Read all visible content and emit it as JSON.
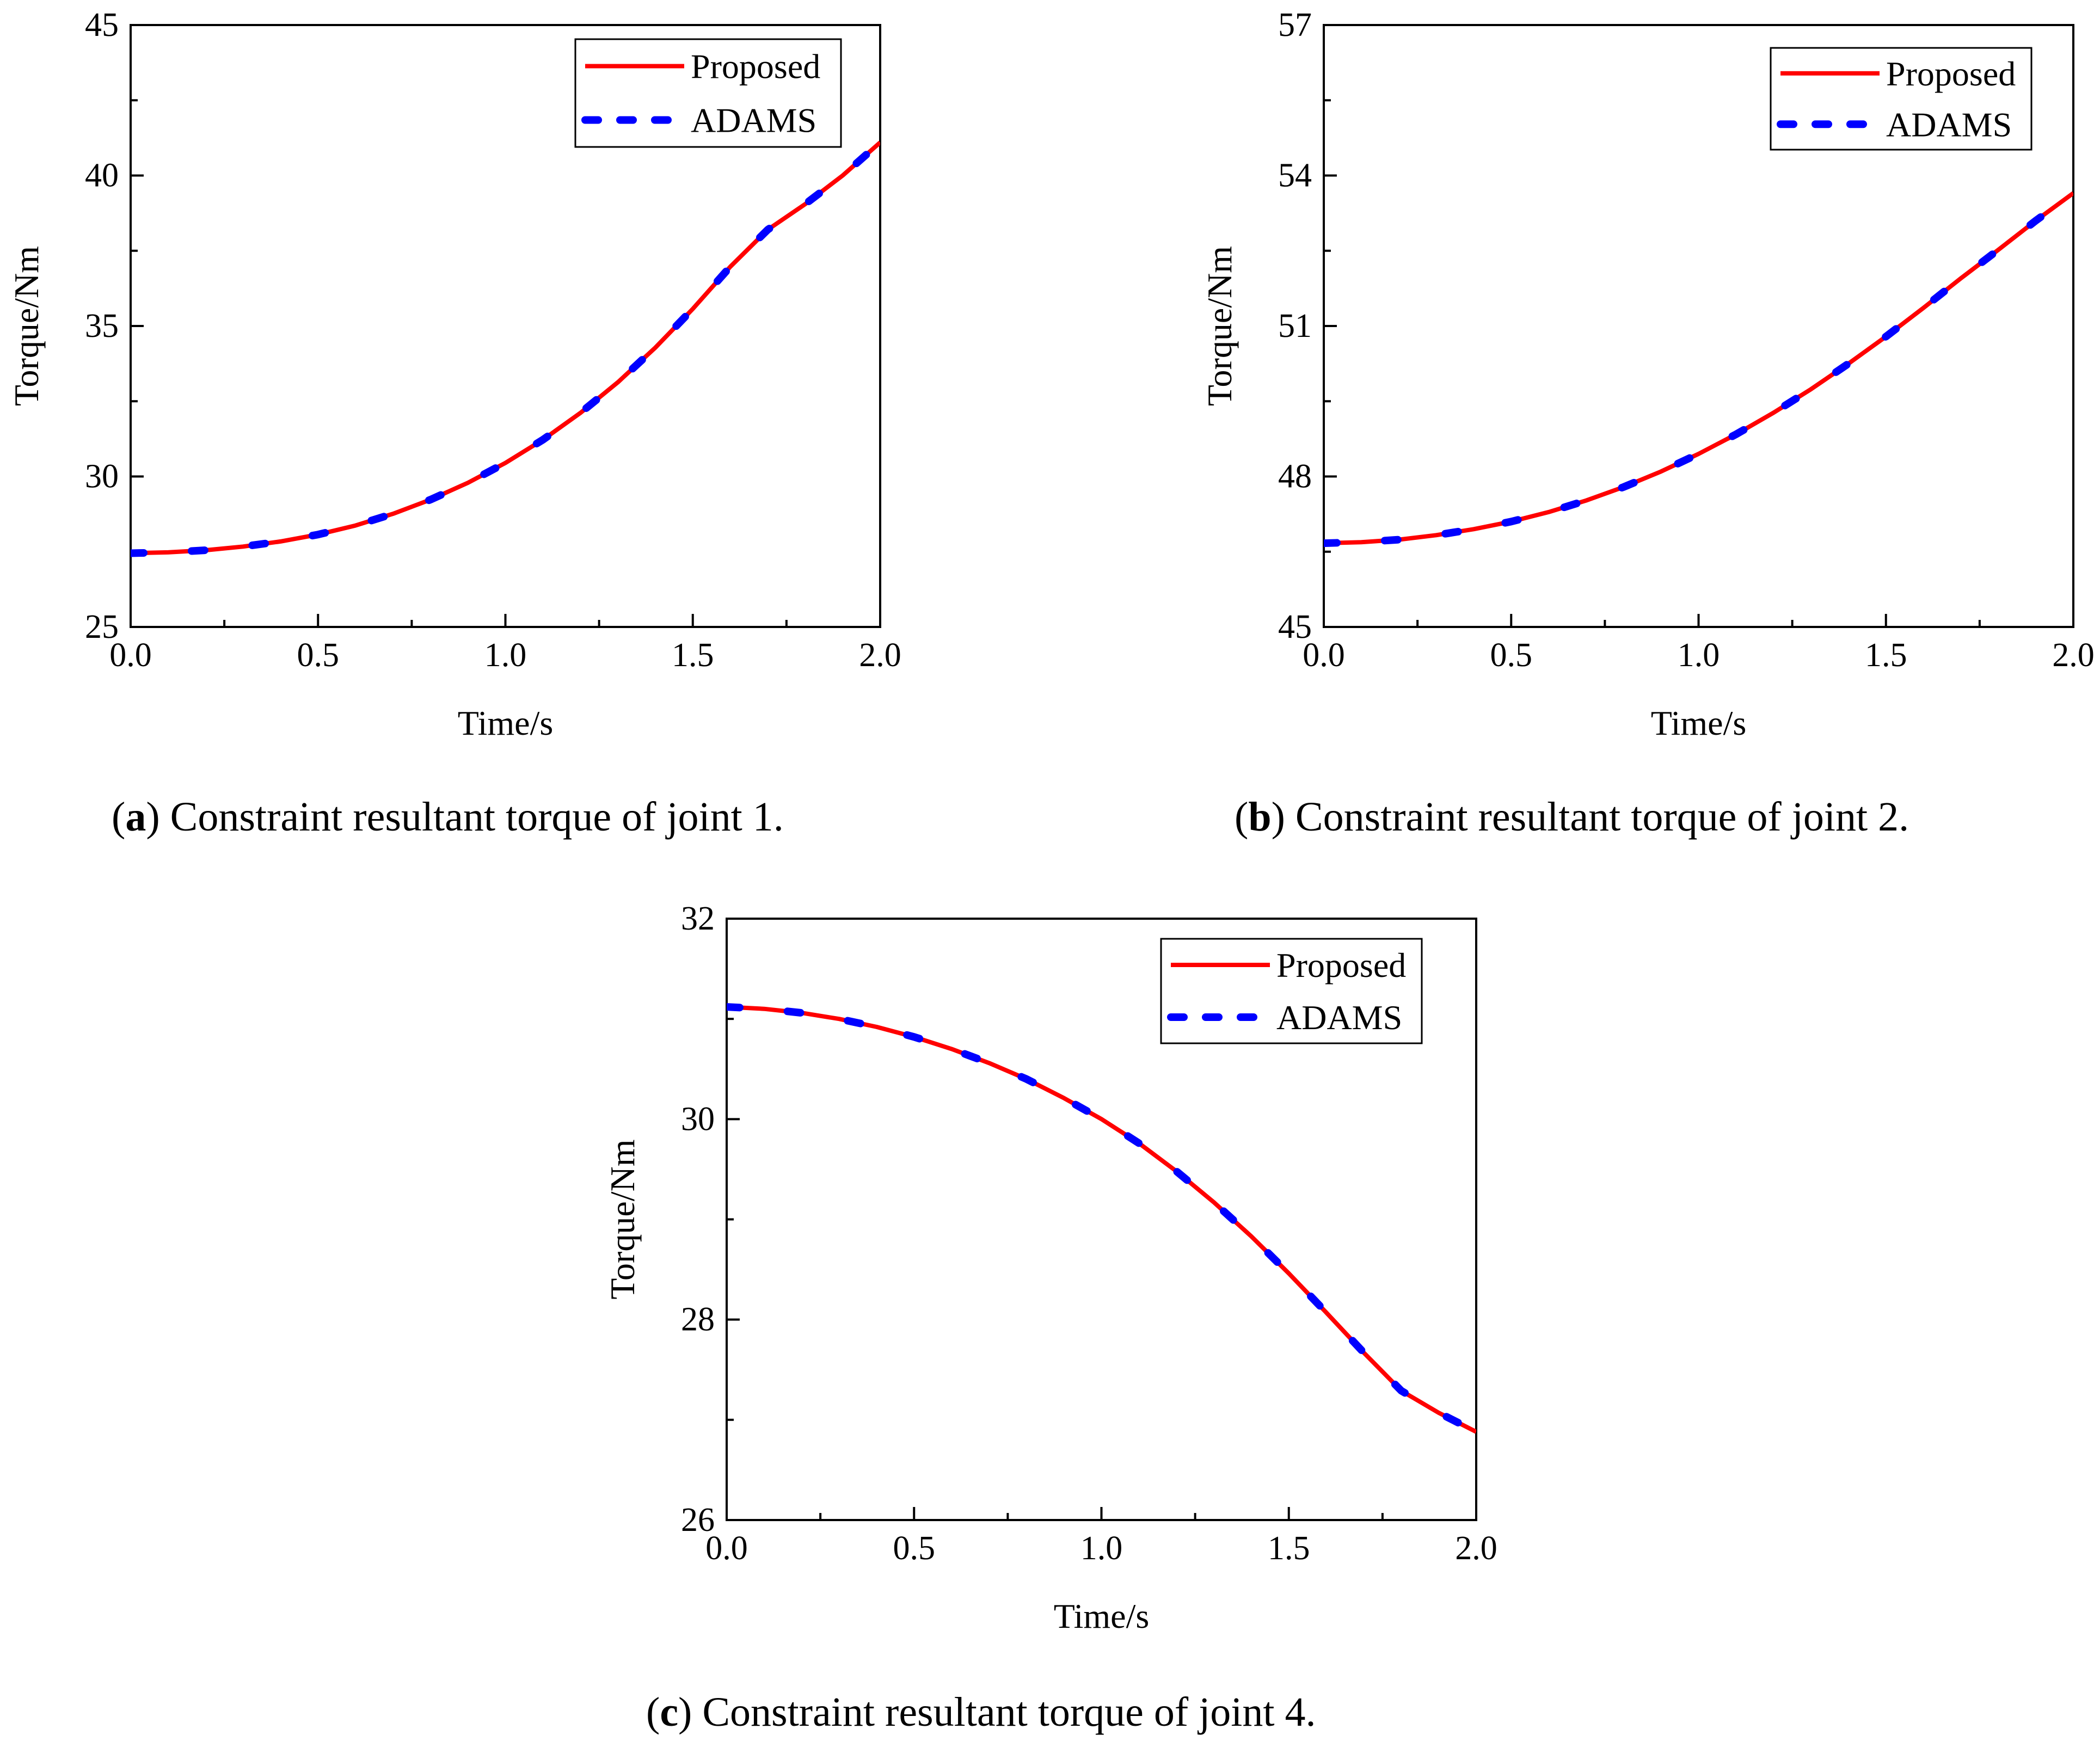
{
  "chart_data": [
    {
      "id": "a",
      "type": "line",
      "title": "",
      "xlabel": "Time/s",
      "ylabel": "Torque/Nm",
      "xlim": [
        0.0,
        2.0
      ],
      "ylim": [
        25,
        45
      ],
      "xticks": [
        "0.0",
        "0.5",
        "1.0",
        "1.5",
        "2.0"
      ],
      "xtick_values": [
        0.0,
        0.5,
        1.0,
        1.5,
        2.0
      ],
      "yticks": [
        "25",
        "30",
        "35",
        "40",
        "45"
      ],
      "ytick_values": [
        25,
        30,
        35,
        40,
        45
      ],
      "legend_position": "top-right",
      "x": [
        0.0,
        0.1,
        0.2,
        0.3,
        0.4,
        0.5,
        0.6,
        0.7,
        0.8,
        0.9,
        1.0,
        1.1,
        1.2,
        1.3,
        1.4,
        1.5,
        1.6,
        1.7,
        1.8,
        1.9,
        2.0
      ],
      "series": [
        {
          "name": "Proposed",
          "color": "#ff0000",
          "style": "solid",
          "values": [
            27.45,
            27.48,
            27.55,
            27.67,
            27.84,
            28.07,
            28.37,
            28.76,
            29.23,
            29.79,
            30.45,
            31.22,
            32.11,
            33.13,
            34.28,
            35.57,
            36.97,
            38.2,
            39.05,
            40.0,
            41.1
          ]
        },
        {
          "name": "ADAMS",
          "color": "#0000ff",
          "style": "dashed",
          "values": [
            27.45,
            27.48,
            27.55,
            27.67,
            27.84,
            28.07,
            28.37,
            28.76,
            29.23,
            29.79,
            30.45,
            31.22,
            32.11,
            33.13,
            34.28,
            35.57,
            36.97,
            38.2,
            39.05,
            40.0,
            41.1
          ]
        }
      ]
    },
    {
      "id": "b",
      "type": "line",
      "title": "",
      "xlabel": "Time/s",
      "ylabel": "Torque/Nm",
      "xlim": [
        0.0,
        2.0
      ],
      "ylim": [
        45,
        57
      ],
      "xticks": [
        "0.0",
        "0.5",
        "1.0",
        "1.5",
        "2.0"
      ],
      "xtick_values": [
        0.0,
        0.5,
        1.0,
        1.5,
        2.0
      ],
      "yticks": [
        "45",
        "48",
        "51",
        "54",
        "57"
      ],
      "ytick_values": [
        45,
        48,
        51,
        54,
        57
      ],
      "legend_position": "top-right",
      "x": [
        0.0,
        0.1,
        0.2,
        0.3,
        0.4,
        0.5,
        0.6,
        0.7,
        0.8,
        0.9,
        1.0,
        1.1,
        1.2,
        1.3,
        1.4,
        1.5,
        1.6,
        1.7,
        1.8,
        1.9,
        2.0
      ],
      "series": [
        {
          "name": "Proposed",
          "color": "#ff0000",
          "style": "solid",
          "values": [
            46.67,
            46.69,
            46.74,
            46.83,
            46.95,
            47.1,
            47.29,
            47.52,
            47.79,
            48.1,
            48.45,
            48.84,
            49.27,
            49.74,
            50.25,
            50.79,
            51.36,
            51.95,
            52.52,
            53.1,
            53.65
          ]
        },
        {
          "name": "ADAMS",
          "color": "#0000ff",
          "style": "dashed",
          "values": [
            46.67,
            46.69,
            46.74,
            46.83,
            46.95,
            47.1,
            47.29,
            47.52,
            47.79,
            48.1,
            48.45,
            48.84,
            49.27,
            49.74,
            50.25,
            50.79,
            51.36,
            51.95,
            52.52,
            53.1,
            53.65
          ]
        }
      ]
    },
    {
      "id": "c",
      "type": "line",
      "title": "",
      "xlabel": "Time/s",
      "ylabel": "Torque/Nm",
      "xlim": [
        0.0,
        2.0
      ],
      "ylim": [
        26,
        32
      ],
      "xticks": [
        "0.0",
        "0.5",
        "1.0",
        "1.5",
        "2.0"
      ],
      "xtick_values": [
        0.0,
        0.5,
        1.0,
        1.5,
        2.0
      ],
      "yticks": [
        "26",
        "28",
        "30",
        "32"
      ],
      "ytick_values": [
        26,
        28,
        30,
        32
      ],
      "legend_position": "top-right",
      "x": [
        0.0,
        0.1,
        0.2,
        0.3,
        0.4,
        0.5,
        0.6,
        0.7,
        0.8,
        0.9,
        1.0,
        1.1,
        1.2,
        1.3,
        1.4,
        1.5,
        1.6,
        1.7,
        1.8,
        1.9,
        2.0
      ],
      "series": [
        {
          "name": "Proposed",
          "color": "#ff0000",
          "style": "solid",
          "values": [
            31.12,
            31.1,
            31.06,
            31.0,
            30.92,
            30.82,
            30.7,
            30.56,
            30.4,
            30.21,
            30.0,
            29.76,
            29.48,
            29.17,
            28.83,
            28.46,
            28.07,
            27.67,
            27.29,
            27.07,
            26.88
          ]
        },
        {
          "name": "ADAMS",
          "color": "#0000ff",
          "style": "dashed",
          "values": [
            31.12,
            31.1,
            31.06,
            31.0,
            30.92,
            30.82,
            30.7,
            30.56,
            30.4,
            30.21,
            30.0,
            29.76,
            29.48,
            29.17,
            28.83,
            28.46,
            28.07,
            27.67,
            27.29,
            27.07,
            26.88
          ]
        }
      ]
    }
  ],
  "captions": [
    {
      "letter": "a",
      "text": " Constraint resultant torque of joint 1."
    },
    {
      "letter": "b",
      "text": " Constraint resultant torque of joint 2."
    },
    {
      "letter": "c",
      "text": " Constraint resultant torque of joint 4."
    }
  ]
}
